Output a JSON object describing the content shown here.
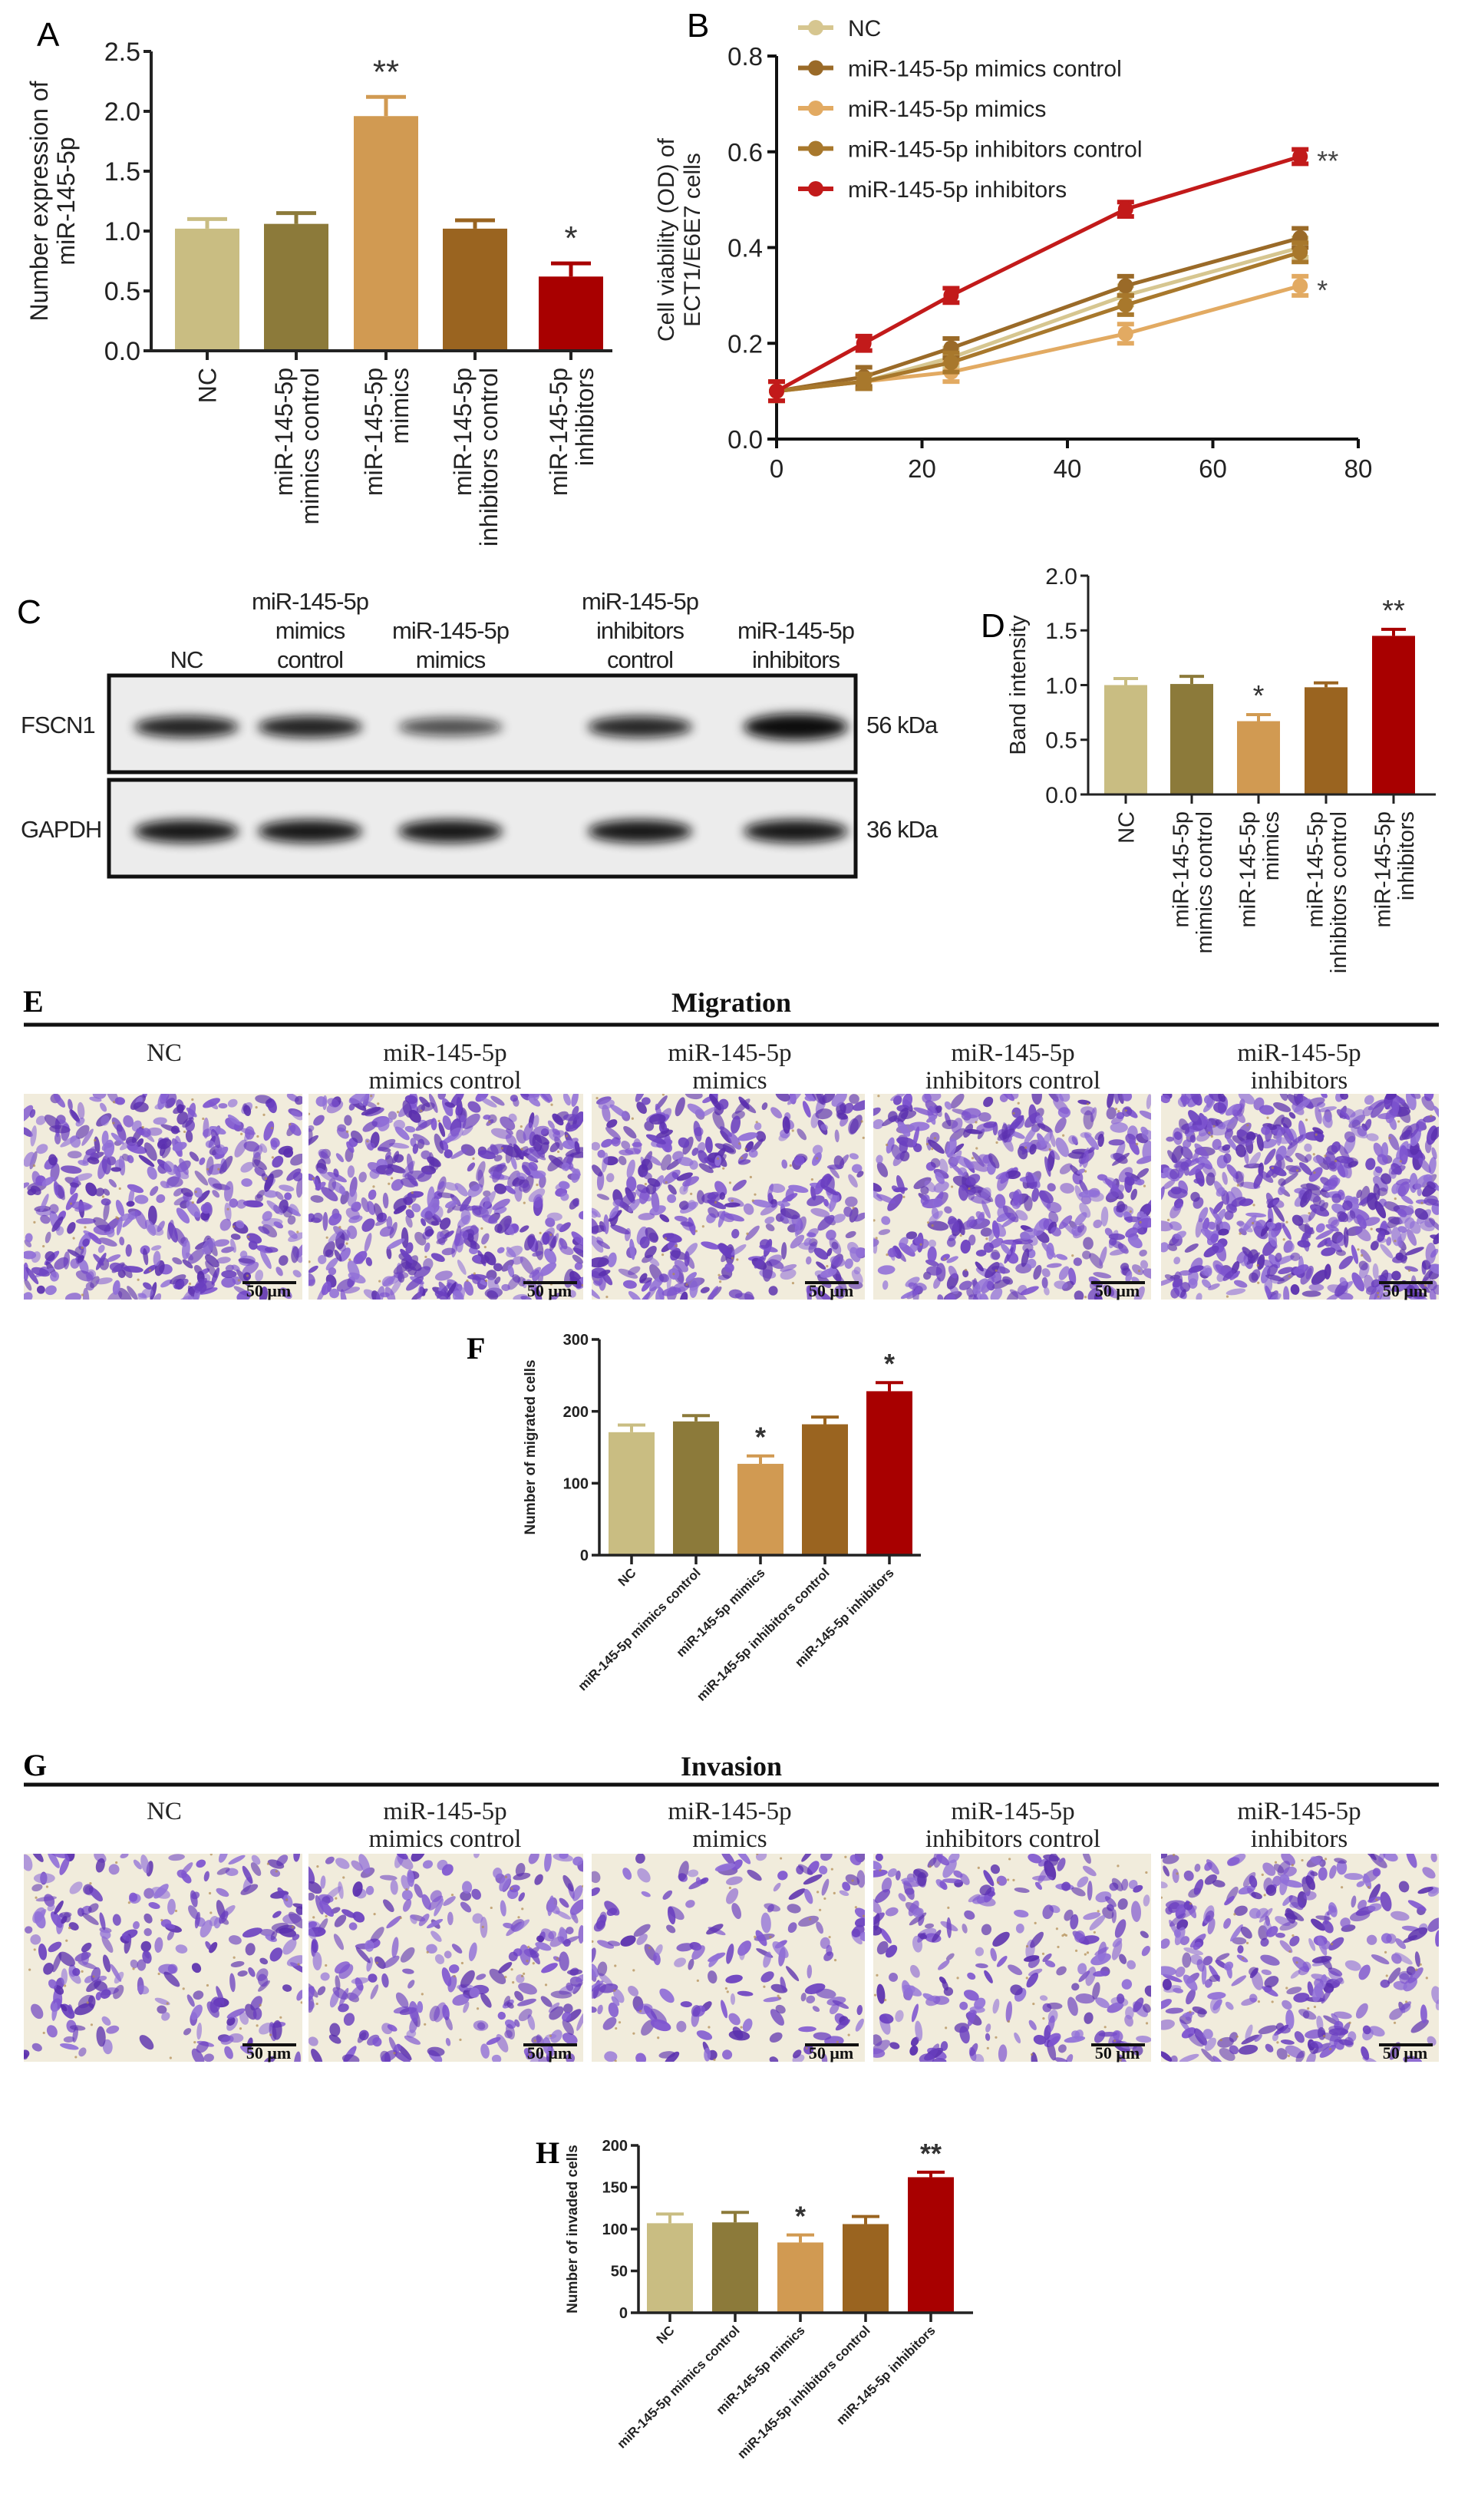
{
  "panels": {
    "A": "A",
    "B": "B",
    "C": "C",
    "D": "D",
    "E": "E",
    "F": "F",
    "G": "G",
    "H": "H"
  },
  "colors": {
    "NC": "#c9bd82",
    "mimics_control": "#8c7a3a",
    "mimics": "#d19a52",
    "inhibitors_control": "#9a6420",
    "inhibitors": "#a80000",
    "line_NC": "#d6c690",
    "line_mimics_control": "#9a6a28",
    "line_mimics": "#e2aa62",
    "line_inhibitors_control": "#a8782c",
    "line_inhibitors": "#c21a1a"
  },
  "chart_data": [
    {
      "panel": "A",
      "type": "bar",
      "categories": [
        "NC",
        "miR-145-5p mimics control",
        "miR-145-5p mimics",
        "miR-145-5p inhibitors control",
        "miR-145-5p inhibitors"
      ],
      "values": [
        1.02,
        1.06,
        1.96,
        1.02,
        0.62
      ],
      "errors": [
        0.08,
        0.09,
        0.16,
        0.07,
        0.11
      ],
      "significance": [
        "",
        "",
        "**",
        "",
        "*"
      ],
      "ylabel": "Number expression of miR-145-5p",
      "ylim": [
        0,
        2.5
      ],
      "yticks": [
        "0.0",
        "0.5",
        "1.0",
        "1.5",
        "2.0",
        "2.5"
      ]
    },
    {
      "panel": "B",
      "type": "line",
      "x": [
        0,
        12,
        24,
        48,
        72
      ],
      "series": [
        {
          "name": "NC",
          "values": [
            0.1,
            0.12,
            0.17,
            0.3,
            0.4
          ],
          "errors": [
            0.02,
            0.015,
            0.02,
            0.02,
            0.02
          ]
        },
        {
          "name": "miR-145-5p mimics control",
          "values": [
            0.1,
            0.13,
            0.19,
            0.32,
            0.42
          ],
          "errors": [
            0.02,
            0.02,
            0.02,
            0.02,
            0.02
          ]
        },
        {
          "name": "miR-145-5p mimics",
          "values": [
            0.1,
            0.12,
            0.14,
            0.22,
            0.32
          ],
          "errors": [
            0.02,
            0.015,
            0.02,
            0.02,
            0.02
          ]
        },
        {
          "name": "miR-145-5p inhibitors control",
          "values": [
            0.1,
            0.12,
            0.16,
            0.28,
            0.39
          ],
          "errors": [
            0.02,
            0.015,
            0.02,
            0.02,
            0.02
          ]
        },
        {
          "name": "miR-145-5p inhibitors",
          "values": [
            0.1,
            0.2,
            0.3,
            0.48,
            0.59
          ],
          "errors": [
            0.02,
            0.015,
            0.015,
            0.015,
            0.015
          ]
        }
      ],
      "significance": {
        "miR-145-5p inhibitors": "**",
        "miR-145-5p mimics": "*"
      },
      "ylabel": "Cell viability (OD) of ECT1/E6E7 cells",
      "xlim": [
        0,
        80
      ],
      "ylim": [
        0,
        0.8
      ],
      "xticks": [
        "0",
        "20",
        "40",
        "60",
        "80"
      ],
      "yticks": [
        "0.0",
        "0.2",
        "0.4",
        "0.6",
        "0.8"
      ],
      "legend": "top-left"
    },
    {
      "panel": "D",
      "type": "bar",
      "categories": [
        "NC",
        "miR-145-5p mimics control",
        "miR-145-5p mimics",
        "miR-145-5p inhibitors control",
        "miR-145-5p inhibitors"
      ],
      "values": [
        1.0,
        1.01,
        0.67,
        0.98,
        1.45
      ],
      "errors": [
        0.06,
        0.07,
        0.06,
        0.04,
        0.06
      ],
      "significance": [
        "",
        "",
        "*",
        "",
        "**"
      ],
      "ylabel": "Band intensity",
      "ylim": [
        0,
        2.0
      ],
      "yticks": [
        "0.0",
        "0.5",
        "1.0",
        "1.5",
        "2.0"
      ]
    },
    {
      "panel": "F",
      "type": "bar",
      "categories": [
        "NC",
        "miR-145-5p mimics control",
        "miR-145-5p mimics",
        "miR-145-5p inhibitors control",
        "miR-145-5p inhibitors"
      ],
      "values": [
        171,
        186,
        127,
        182,
        228
      ],
      "errors": [
        10,
        8,
        11,
        10,
        12
      ],
      "significance": [
        "",
        "",
        "*",
        "",
        "*"
      ],
      "ylabel": "Number of migrated cells",
      "ylim": [
        0,
        300
      ],
      "yticks": [
        "0",
        "100",
        "200",
        "300"
      ]
    },
    {
      "panel": "H",
      "type": "bar",
      "categories": [
        "NC",
        "miR-145-5p mimics control",
        "miR-145-5p mimics",
        "miR-145-5p inhibitors control",
        "miR-145-5p inhibitors"
      ],
      "values": [
        107,
        108,
        84,
        106,
        162
      ],
      "errors": [
        11,
        12,
        9,
        9,
        6
      ],
      "significance": [
        "",
        "",
        "*",
        "",
        "**"
      ],
      "ylabel": "Number of invaded cells",
      "ylim": [
        0,
        200
      ],
      "yticks": [
        "0",
        "50",
        "100",
        "150",
        "200"
      ]
    }
  ],
  "blot": {
    "lanes": [
      [
        "NC"
      ],
      [
        "miR-145-5p",
        "mimics",
        "control"
      ],
      [
        "miR-145-5p",
        "mimics"
      ],
      [
        "miR-145-5p",
        "inhibitors",
        "control"
      ],
      [
        "miR-145-5p",
        "inhibitors"
      ]
    ],
    "rows": [
      {
        "protein": "FSCN1",
        "size": "56 kDa"
      },
      {
        "protein": "GAPDH",
        "size": "36 kDa"
      }
    ]
  },
  "migration": {
    "title": "Migration",
    "headers": [
      [
        "NC"
      ],
      [
        "miR-145-5p",
        "mimics control"
      ],
      [
        "miR-145-5p",
        "mimics"
      ],
      [
        "miR-145-5p",
        "inhibitors control"
      ],
      [
        "miR-145-5p",
        "inhibitors"
      ]
    ],
    "scale_bar": "50 μm"
  },
  "invasion": {
    "title": "Invasion",
    "headers": [
      [
        "NC"
      ],
      [
        "miR-145-5p",
        "mimics control"
      ],
      [
        "miR-145-5p",
        "mimics"
      ],
      [
        "miR-145-5p",
        "inhibitors control"
      ],
      [
        "miR-145-5p",
        "inhibitors"
      ]
    ],
    "scale_bar": "50 μm"
  }
}
